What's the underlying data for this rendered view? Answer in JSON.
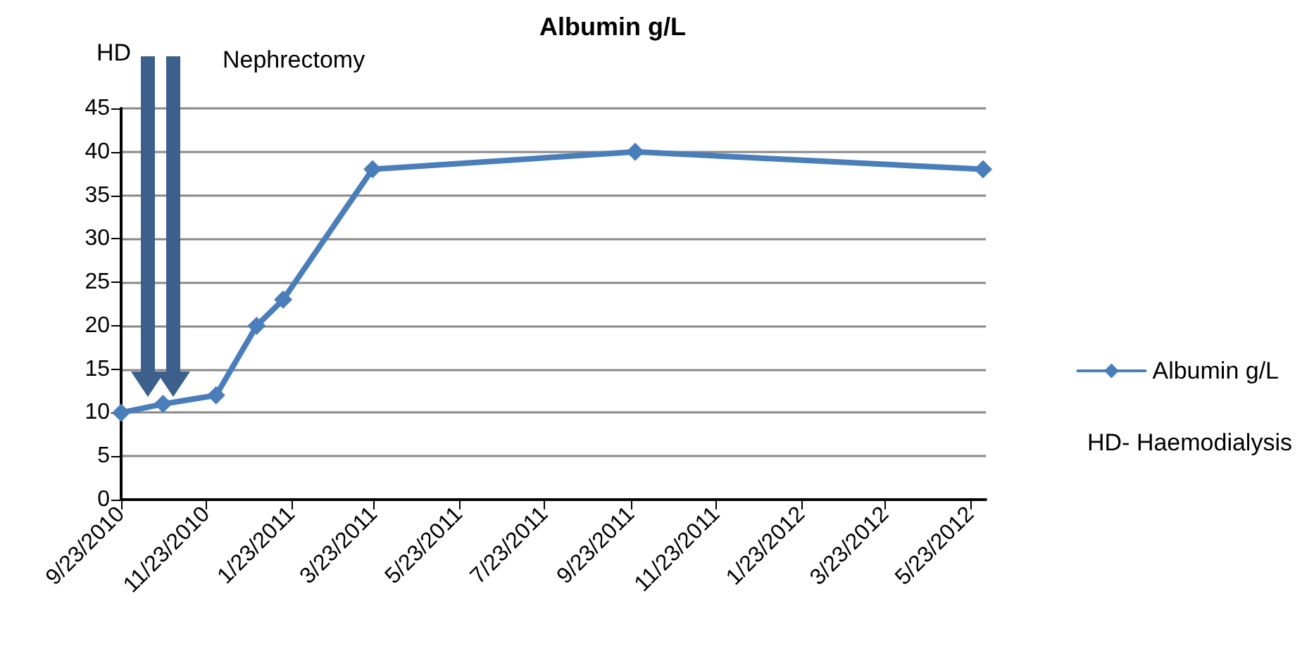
{
  "chart_data": {
    "type": "line",
    "title": "Albumin g/L",
    "x": [
      "2010-09-23",
      "2010-10-23",
      "2010-11-30",
      "2010-12-29",
      "2011-01-17",
      "2011-03-22",
      "2011-09-26",
      "2012-06-01"
    ],
    "series": [
      {
        "name": "Albumin g/L",
        "color": "#4a7ebb",
        "values": [
          10,
          11,
          12,
          20,
          23,
          38,
          40,
          38
        ]
      }
    ],
    "xlim": [
      "2010-09-23",
      "2012-06-03"
    ],
    "xticks": [
      {
        "value": "2010-09-23",
        "label": "9/23/2010"
      },
      {
        "value": "2010-11-23",
        "label": "11/23/2010"
      },
      {
        "value": "2011-01-23",
        "label": "1/23/2011"
      },
      {
        "value": "2011-03-23",
        "label": "3/23/2011"
      },
      {
        "value": "2011-05-23",
        "label": "5/23/2011"
      },
      {
        "value": "2011-07-23",
        "label": "7/23/2011"
      },
      {
        "value": "2011-09-23",
        "label": "9/23/2011"
      },
      {
        "value": "2011-11-23",
        "label": "11/23/2011"
      },
      {
        "value": "2012-01-23",
        "label": "1/23/2012"
      },
      {
        "value": "2012-03-23",
        "label": "3/23/2012"
      },
      {
        "value": "2012-05-23",
        "label": "5/23/2012"
      }
    ],
    "ylim": [
      0,
      45
    ],
    "yticks": [
      0,
      5,
      10,
      15,
      20,
      25,
      30,
      35,
      40,
      45
    ],
    "annotations": [
      "HD",
      "Nephrectomy",
      "HD- Haemodialysis"
    ],
    "grid": "y",
    "legend": "right",
    "marker": "diamond",
    "line_style": "solid"
  }
}
